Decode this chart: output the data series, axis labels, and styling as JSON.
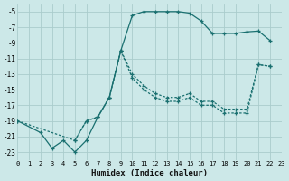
{
  "xlabel": "Humidex (Indice chaleur)",
  "bg_color": "#cce8e8",
  "grid_color": "#aacccc",
  "line_color": "#1a7070",
  "xlim": [
    0,
    23
  ],
  "ylim": [
    -24,
    -4
  ],
  "xticks": [
    0,
    1,
    2,
    3,
    4,
    5,
    6,
    7,
    8,
    9,
    10,
    11,
    12,
    13,
    14,
    15,
    16,
    17,
    18,
    19,
    20,
    21,
    22,
    23
  ],
  "yticks": [
    -5,
    -7,
    -9,
    -11,
    -13,
    -15,
    -17,
    -19,
    -21,
    -23
  ],
  "curve1_x": [
    0,
    2,
    3,
    4,
    5,
    6,
    7,
    8,
    9,
    10,
    11,
    12,
    13,
    14,
    15,
    16,
    17,
    18,
    19,
    20,
    21,
    22
  ],
  "curve1_y": [
    -19,
    -20.5,
    -22.5,
    -21.5,
    -23,
    -21.5,
    -18.5,
    -16,
    -10,
    -5.5,
    -5,
    -5,
    -5,
    -5,
    -5.2,
    -6.2,
    -7.8,
    -7.8,
    -7.8,
    -7.6,
    -7.5,
    -8.7
  ],
  "curve2_x": [
    5,
    6,
    7,
    8,
    9,
    10,
    11,
    12,
    13,
    14,
    15,
    16,
    17,
    18,
    19,
    20,
    21,
    22
  ],
  "curve2_y": [
    -21.5,
    -19.0,
    -18.5,
    -16,
    -10,
    -13,
    -14.5,
    -15.5,
    -16,
    -16,
    -15.5,
    -16.5,
    -16.5,
    -17.5,
    -17.5,
    -17.5,
    -11.8,
    -12
  ],
  "curve3_x": [
    0,
    5,
    6,
    7,
    8,
    9,
    10,
    11,
    12,
    13,
    14,
    15,
    16,
    17,
    18,
    19,
    20,
    21,
    22
  ],
  "curve3_y": [
    -19,
    -21.5,
    -19.0,
    -18.5,
    -16,
    -10,
    -13.5,
    -15,
    -16,
    -16.5,
    -16.5,
    -16,
    -17,
    -17,
    -18,
    -18,
    -18,
    -11.8,
    -12
  ]
}
